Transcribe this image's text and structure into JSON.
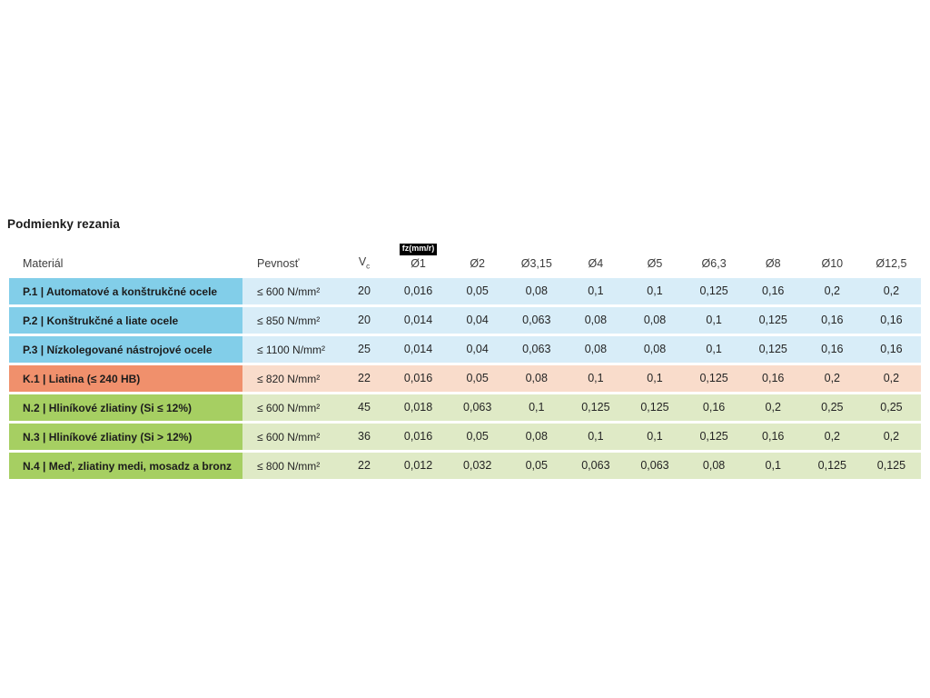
{
  "page": {
    "title": "Podmienky rezania"
  },
  "colors": {
    "steel_header": "#82CEE9",
    "steel_row": "#D8EDF8",
    "cast_iron_header": "#F0906C",
    "cast_iron_row": "#F9DCCB",
    "nonferrous_header": "#A6CF62",
    "nonferrous_row": "#DFEAC6",
    "badge_bg": "#000000",
    "badge_text": "#FFFFFF",
    "text": "#222222"
  },
  "table": {
    "headers": {
      "material": "Materiál",
      "strength": "Pevnosť",
      "vc_label": "V",
      "vc_sub": "c",
      "fz_tag": "fz(mm/r)",
      "diameters": [
        "Ø1",
        "Ø2",
        "Ø3,15",
        "Ø4",
        "Ø5",
        "Ø6,3",
        "Ø8",
        "Ø10",
        "Ø12,5"
      ]
    },
    "rows": [
      {
        "group": "steel",
        "material": "P.1 | Automatové a konštrukčné ocele",
        "strength": "≤ 600 N/mm²",
        "vc": "20",
        "values": [
          "0,016",
          "0,05",
          "0,08",
          "0,1",
          "0,1",
          "0,125",
          "0,16",
          "0,2",
          "0,2"
        ]
      },
      {
        "group": "steel",
        "material": "P.2 | Konštrukčné a liate ocele",
        "strength": "≤ 850 N/mm²",
        "vc": "20",
        "values": [
          "0,014",
          "0,04",
          "0,063",
          "0,08",
          "0,08",
          "0,1",
          "0,125",
          "0,16",
          "0,16"
        ]
      },
      {
        "group": "steel",
        "material": "P.3 | Nízkolegované nástrojové ocele",
        "strength": "≤ 1100 N/mm²",
        "vc": "25",
        "values": [
          "0,014",
          "0,04",
          "0,063",
          "0,08",
          "0,08",
          "0,1",
          "0,125",
          "0,16",
          "0,16"
        ]
      },
      {
        "group": "cast_iron",
        "material": "K.1 | Liatina (≤ 240 HB)",
        "strength": "≤ 820 N/mm²",
        "vc": "22",
        "values": [
          "0,016",
          "0,05",
          "0,08",
          "0,1",
          "0,1",
          "0,125",
          "0,16",
          "0,2",
          "0,2"
        ]
      },
      {
        "group": "nonferrous",
        "material": "N.2 | Hliníkové zliatiny (Si ≤ 12%)",
        "strength": "≤ 600 N/mm²",
        "vc": "45",
        "values": [
          "0,018",
          "0,063",
          "0,1",
          "0,125",
          "0,125",
          "0,16",
          "0,2",
          "0,25",
          "0,25"
        ]
      },
      {
        "group": "nonferrous",
        "material": "N.3 | Hliníkové zliatiny (Si > 12%)",
        "strength": "≤ 600 N/mm²",
        "vc": "36",
        "values": [
          "0,016",
          "0,05",
          "0,08",
          "0,1",
          "0,1",
          "0,125",
          "0,16",
          "0,2",
          "0,2"
        ]
      },
      {
        "group": "nonferrous",
        "material": "N.4 | Meď, zliatiny medi, mosadz a bronz",
        "strength": "≤ 800 N/mm²",
        "vc": "22",
        "values": [
          "0,012",
          "0,032",
          "0,05",
          "0,063",
          "0,063",
          "0,08",
          "0,1",
          "0,125",
          "0,125"
        ]
      }
    ]
  }
}
